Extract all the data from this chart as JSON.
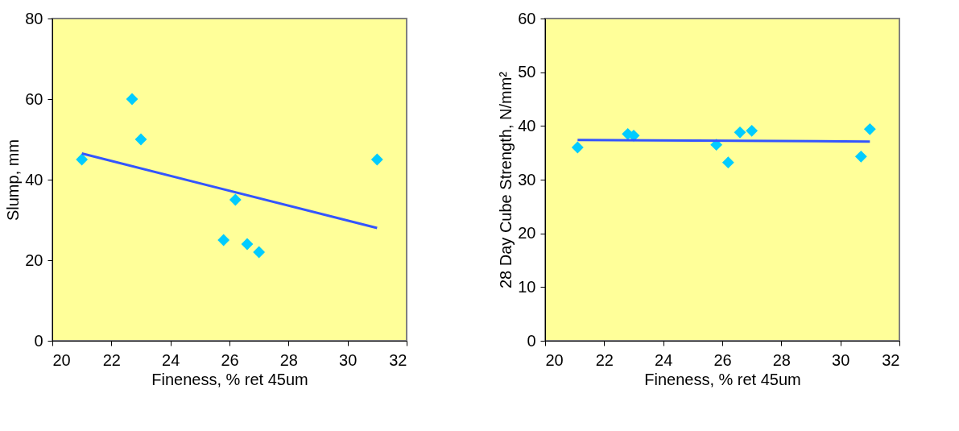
{
  "chart_data": [
    {
      "type": "scatter",
      "xlabel": "Fineness, % ret 45um",
      "ylabel": "Slump, mm",
      "xlim": [
        20,
        32
      ],
      "xticks": [
        20,
        22,
        24,
        26,
        28,
        30,
        32
      ],
      "ylim": [
        0,
        80
      ],
      "yticks": [
        0,
        20,
        40,
        60,
        80
      ],
      "grid": false,
      "series": [
        {
          "color": "#00ccff",
          "marker": "diamond",
          "x": [
            21,
            22.7,
            23,
            25.8,
            26.2,
            26.6,
            27,
            31
          ],
          "values": [
            45,
            60,
            50,
            25,
            35,
            24,
            22,
            45
          ]
        },
        {
          "type": "line",
          "color": "#3355ff",
          "marker": "none",
          "line_style": "solid",
          "x": [
            21,
            31
          ],
          "values": [
            46.5,
            28
          ]
        }
      ]
    },
    {
      "type": "scatter",
      "xlabel": "Fineness, % ret 45um",
      "ylabel": "28 Day Cube Strength, N/mm²",
      "xlim": [
        20,
        32
      ],
      "xticks": [
        20,
        22,
        24,
        26,
        28,
        30,
        32
      ],
      "ylim": [
        0,
        60
      ],
      "yticks": [
        0,
        10,
        20,
        30,
        40,
        50,
        60
      ],
      "grid": false,
      "series": [
        {
          "color": "#00ccff",
          "marker": "diamond",
          "x": [
            21.1,
            22.8,
            23,
            25.8,
            26.2,
            26.6,
            27,
            30.7,
            31
          ],
          "values": [
            36,
            38.5,
            38.2,
            36.5,
            33.2,
            38.8,
            39.1,
            34.3,
            39.4
          ]
        },
        {
          "type": "line",
          "color": "#3355ff",
          "marker": "none",
          "line_style": "solid",
          "x": [
            21.1,
            31
          ],
          "values": [
            37.4,
            37.1
          ]
        }
      ]
    }
  ]
}
